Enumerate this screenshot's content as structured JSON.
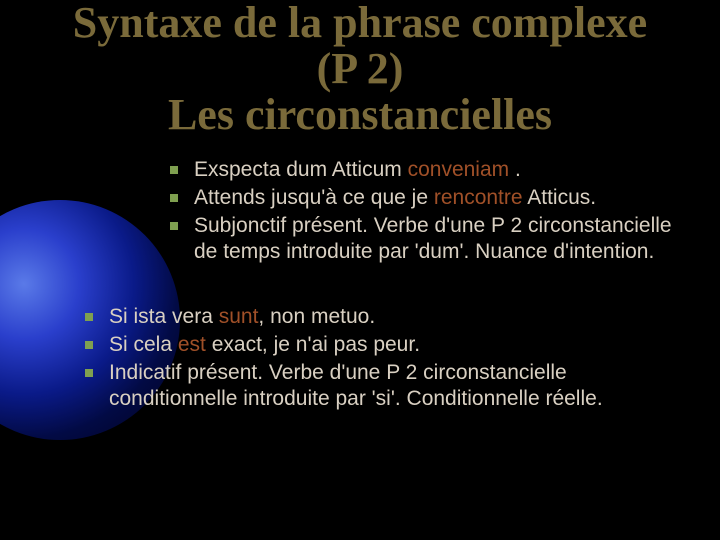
{
  "colors": {
    "background": "#000000",
    "title": "#7a6a3a",
    "body_text": "#d9d0c2",
    "highlight": "#a05028",
    "bullet": "#7fa050"
  },
  "title": {
    "lines": [
      "Syntaxe de la phrase complexe",
      "(P 2)",
      "Les circonstancielles"
    ],
    "fontsize_pt": 33,
    "font_family": "Times New Roman"
  },
  "body_fontsize_pt": 21,
  "groups": [
    {
      "indent": 1,
      "items": [
        {
          "segments": [
            {
              "text": "Exspecta dum Atticum ",
              "color": "body_text"
            },
            {
              "text": "conveniam",
              "color": "highlight"
            },
            {
              "text": " .",
              "color": "body_text"
            }
          ]
        },
        {
          "segments": [
            {
              "text": "Attends jusqu'à ce que je ",
              "color": "body_text"
            },
            {
              "text": "rencontre",
              "color": "highlight"
            },
            {
              "text": " Atticus.",
              "color": "body_text"
            }
          ]
        },
        {
          "segments": [
            {
              "text": "Subjonctif présent. Verbe d'une P 2 circonstancielle de temps introduite par 'dum'.  Nuance d'intention.",
              "color": "body_text"
            }
          ]
        }
      ]
    },
    {
      "indent": 0,
      "items": [
        {
          "segments": [
            {
              "text": "Si ista vera ",
              "color": "body_text"
            },
            {
              "text": "sunt",
              "color": "highlight"
            },
            {
              "text": ", non metuo.",
              "color": "body_text"
            }
          ]
        },
        {
          "segments": [
            {
              "text": "Si cela ",
              "color": "body_text"
            },
            {
              "text": "est",
              "color": "highlight"
            },
            {
              "text": " exact, je n'ai pas peur.",
              "color": "body_text"
            }
          ]
        },
        {
          "segments": [
            {
              "text": "Indicatif présent. Verbe d'une P 2 circonstancielle conditionnelle introduite par 'si'. Conditionnelle réelle.",
              "color": "body_text"
            }
          ]
        }
      ]
    }
  ]
}
